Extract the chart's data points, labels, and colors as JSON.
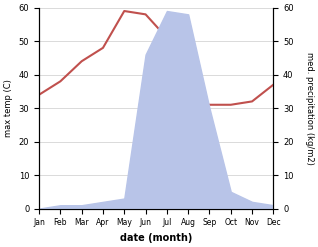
{
  "months": [
    "Jan",
    "Feb",
    "Mar",
    "Apr",
    "May",
    "Jun",
    "Jul",
    "Aug",
    "Sep",
    "Oct",
    "Nov",
    "Dec"
  ],
  "temperature": [
    34,
    38,
    44,
    48,
    59,
    58,
    51,
    32,
    31,
    31,
    32,
    37
  ],
  "precipitation": [
    0,
    1,
    1,
    2,
    3,
    46,
    59,
    58,
    30,
    5,
    2,
    1
  ],
  "temp_color": "#c0504d",
  "precip_fill_color": "#b8c4e8",
  "ylim_temp": [
    0,
    60
  ],
  "ylim_precip": [
    0,
    60
  ],
  "xlabel": "date (month)",
  "ylabel_left": "max temp (C)",
  "ylabel_right": "med. precipitation (kg/m2)",
  "bg_color": "#ffffff",
  "grid_color": "#cccccc",
  "yticks": [
    0,
    10,
    20,
    30,
    40,
    50,
    60
  ]
}
